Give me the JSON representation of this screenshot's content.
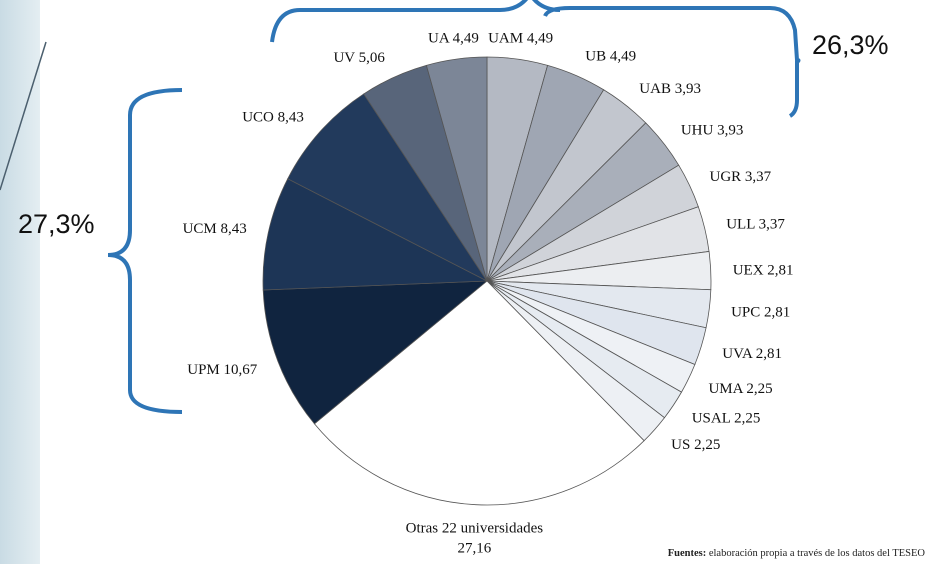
{
  "chart_data": {
    "type": "pie",
    "categories": [
      "UAM",
      "UB",
      "UAB",
      "UHU",
      "UGR",
      "ULL",
      "UEX",
      "UPC",
      "UVA",
      "UMA",
      "USAL",
      "US",
      "Otras 22 universidades",
      "UPM",
      "UCM",
      "UCO",
      "UV",
      "UA"
    ],
    "values": [
      4.49,
      4.49,
      3.93,
      3.93,
      3.37,
      3.37,
      2.81,
      2.81,
      2.81,
      2.25,
      2.25,
      2.25,
      27.16,
      10.67,
      8.43,
      8.43,
      5.06,
      4.49
    ],
    "value_labels": [
      "4,49",
      "4,49",
      "3,93",
      "3,93",
      "3,37",
      "3,37",
      "2,81",
      "2,81",
      "2,81",
      "2,25",
      "2,25",
      "2,25",
      "27,16",
      "10,67",
      "8,43",
      "8,43",
      "5,06",
      "4,49"
    ],
    "colors": [
      "#b4b9c3",
      "#9fa6b3",
      "#c2c6ce",
      "#a9afba",
      "#d0d3d9",
      "#e1e3e7",
      "#eceef1",
      "#e3e8ef",
      "#dfe5ee",
      "#eef1f5",
      "#e6ebf1",
      "#edf0f4",
      "#ffffff",
      "#10243f",
      "#1d3556",
      "#223a5c",
      "#58657a",
      "#7c8697"
    ],
    "annotations": [
      "27,3%",
      "26,3%"
    ],
    "source": {
      "bold": "Fuentes:",
      "text": "elaboración propia a través de los datos del TESEO"
    }
  }
}
